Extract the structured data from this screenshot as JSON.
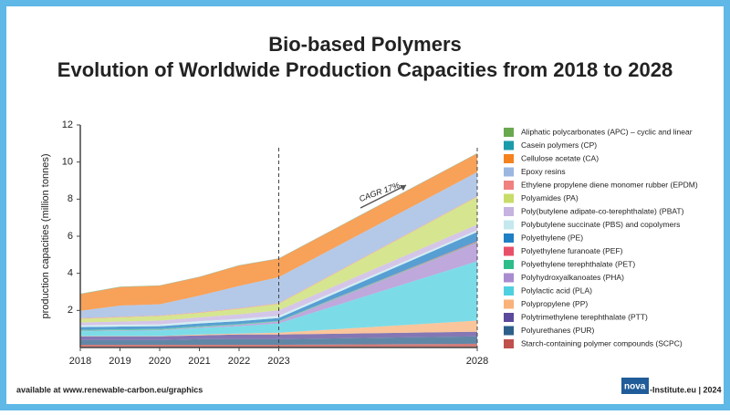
{
  "chart_data": {
    "type": "stacked-area",
    "title": "Bio-based Polymers",
    "subtitle": "Evolution of Worldwide Production Capacities from 2018 to 2028",
    "y_label": "production capacities (million tonnes)",
    "annotation": "CAGR 17%",
    "x": [
      2018,
      2019,
      2020,
      2021,
      2022,
      2023,
      2028
    ],
    "xlim": [
      2018,
      2028
    ],
    "xticks": [
      2018,
      2019,
      2020,
      2021,
      2022,
      2023,
      2028
    ],
    "ylim": [
      0,
      12
    ],
    "yticks": [
      2,
      4,
      6,
      8,
      10,
      12
    ],
    "series": [
      {
        "name": "Aliphatic polycarbonates (APC) – cyclic and linear",
        "color": "#6aa84f",
        "values": [
          0.01,
          0.01,
          0.01,
          0.01,
          0.01,
          0.01,
          0.01
        ]
      },
      {
        "name": "Casein polymers (CP)",
        "color": "#1b9aaa",
        "values": [
          0.01,
          0.01,
          0.01,
          0.01,
          0.01,
          0.01,
          0.01
        ]
      },
      {
        "name": "Cellulose acetate (CA)",
        "color": "#f58220",
        "values": [
          0.9,
          1.0,
          1.0,
          1.0,
          1.1,
          1.0,
          1.0
        ]
      },
      {
        "name": "Epoxy resins",
        "color": "#9bb7e0",
        "values": [
          0.4,
          0.6,
          0.6,
          0.9,
          1.2,
          1.4,
          1.3
        ]
      },
      {
        "name": "Ethylene propylene diene monomer rubber (EPDM)",
        "color": "#f08080",
        "values": [
          0.03,
          0.03,
          0.03,
          0.03,
          0.03,
          0.03,
          0.03
        ]
      },
      {
        "name": "Polyamides (PA)",
        "color": "#c8dc6a",
        "values": [
          0.2,
          0.23,
          0.25,
          0.25,
          0.3,
          0.35,
          1.5
        ]
      },
      {
        "name": "Poly(butylene adipate-co-terephthalate) (PBAT)",
        "color": "#c6b3e0",
        "values": [
          0.15,
          0.17,
          0.2,
          0.2,
          0.25,
          0.3,
          0.3
        ]
      },
      {
        "name": "Polybutylene succinate (PBS) and copolymers",
        "color": "#c5e8ef",
        "values": [
          0.1,
          0.1,
          0.1,
          0.12,
          0.12,
          0.12,
          0.1
        ]
      },
      {
        "name": "Polyethylene (PE)",
        "color": "#1f7fc4",
        "values": [
          0.15,
          0.15,
          0.15,
          0.15,
          0.15,
          0.15,
          0.5
        ]
      },
      {
        "name": "Polyethylene furanoate (PEF)",
        "color": "#e8506a",
        "values": [
          0,
          0,
          0,
          0,
          0,
          0,
          0.05
        ]
      },
      {
        "name": "Polyethylene terephthalate (PET)",
        "color": "#2ebd8a",
        "values": [
          0.05,
          0.05,
          0.05,
          0.05,
          0.04,
          0.04,
          0.03
        ]
      },
      {
        "name": "Polyhydroxyalkanoates (PHA)",
        "color": "#a98bd0",
        "values": [
          0.03,
          0.03,
          0.03,
          0.05,
          0.08,
          0.1,
          1.0
        ]
      },
      {
        "name": "Polylactic acid (PLA)",
        "color": "#4fd0e0",
        "values": [
          0.25,
          0.28,
          0.3,
          0.35,
          0.4,
          0.5,
          3.2
        ]
      },
      {
        "name": "Polypropylene (PP)",
        "color": "#f9b27a",
        "values": [
          0.02,
          0.02,
          0.02,
          0.05,
          0.05,
          0.1,
          0.6
        ]
      },
      {
        "name": "Polytrimethylene terephthalate (PTT)",
        "color": "#5b4a9b",
        "values": [
          0.2,
          0.2,
          0.2,
          0.2,
          0.25,
          0.25,
          0.25
        ]
      },
      {
        "name": "Polyurethanes (PUR)",
        "color": "#2c5f8a",
        "values": [
          0.25,
          0.25,
          0.25,
          0.3,
          0.3,
          0.3,
          0.4
        ]
      },
      {
        "name": "Starch-containing polymer compounds (SCPC)",
        "color": "#c0504d",
        "values": [
          0.15,
          0.15,
          0.15,
          0.15,
          0.15,
          0.15,
          0.2
        ]
      }
    ]
  },
  "footer": {
    "source": "available at www.renewable-carbon.eu/graphics",
    "brand": "nova",
    "credit": "-Institute.eu | 2024"
  }
}
